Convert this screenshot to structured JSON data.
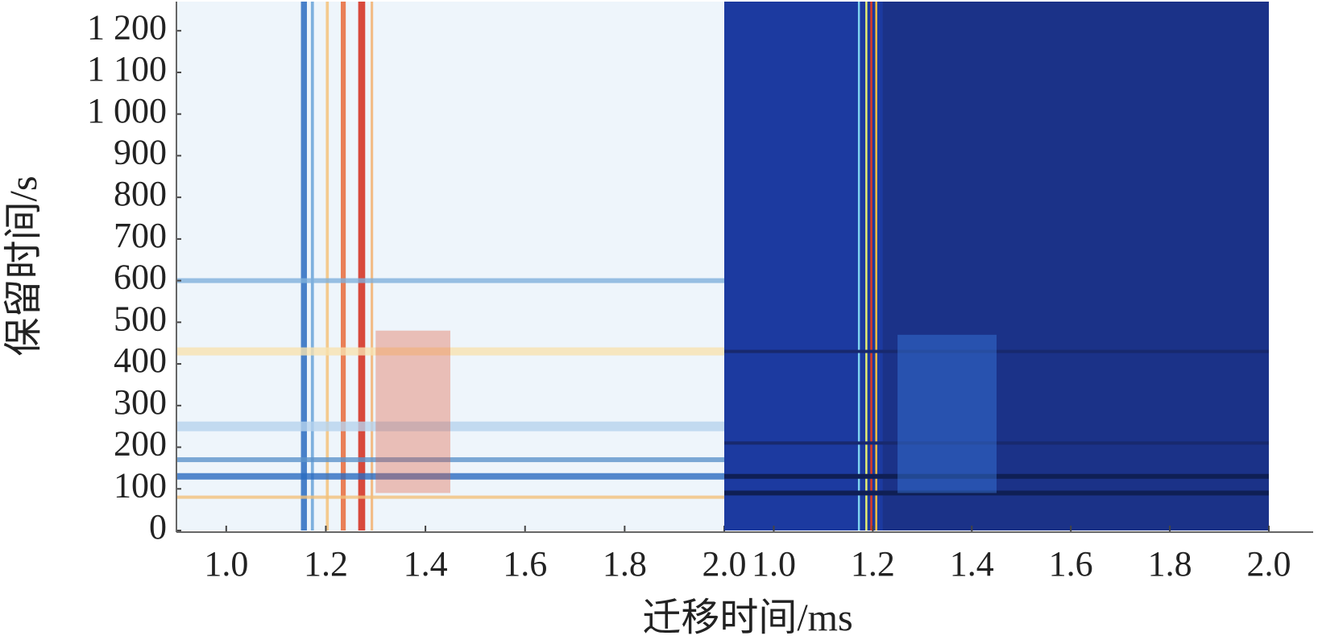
{
  "chart_data": [
    {
      "type": "heatmap",
      "ylabel": "保留时间/s",
      "xlabel": "迁移时间/ms",
      "xlim": [
        0.9,
        2.0
      ],
      "xticks": [
        {
          "value": 1,
          "label": "1.0"
        },
        1.2,
        1.4,
        1.6,
        1.8,
        {
          "value": 2,
          "label": "2.0"
        }
      ],
      "ylim": [
        0,
        1270
      ],
      "yticks": [
        0,
        100,
        200,
        300,
        400,
        500,
        600,
        700,
        800,
        900,
        {
          "value": 1000,
          "label": "1 000"
        },
        {
          "value": 1100,
          "label": "1 100"
        },
        {
          "value": 1200,
          "label": "1 200"
        }
      ],
      "color": "#eef5fb"
    },
    {
      "type": "heatmap",
      "xlim": [
        0.9,
        2.0
      ],
      "xticks": [
        {
          "value": 1,
          "label": "1.0"
        },
        1.2,
        1.4,
        1.6,
        1.8,
        {
          "value": 2,
          "label": "2.0"
        }
      ],
      "ylim": [
        0,
        1270
      ],
      "color": "#1c3aa0"
    }
  ]
}
